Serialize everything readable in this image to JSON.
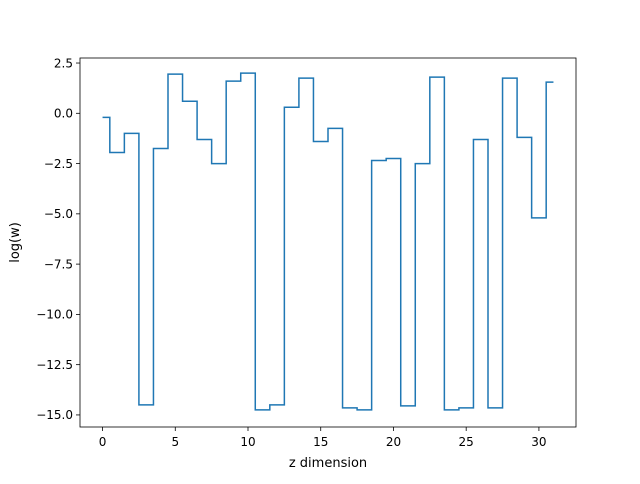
{
  "chart_data": {
    "type": "line",
    "step": "mid",
    "title": "",
    "xlabel": "z dimension",
    "ylabel": "log(w)",
    "xlim": [
      -1.55,
      32.55
    ],
    "ylim": [
      -15.6,
      2.75
    ],
    "xticks": [
      0,
      5,
      10,
      15,
      20,
      25,
      30
    ],
    "xtick_labels": [
      "0",
      "5",
      "10",
      "15",
      "20",
      "25",
      "30"
    ],
    "yticks": [
      2.5,
      0.0,
      -2.5,
      -5.0,
      -7.5,
      -10.0,
      -12.5,
      -15.0
    ],
    "ytick_labels": [
      "2.5",
      "0.0",
      "−2.5",
      "−5.0",
      "−7.5",
      "−10.0",
      "−12.5",
      "−15.0"
    ],
    "grid": false,
    "legend": "none",
    "series_color": "#1f77b4",
    "series": [
      {
        "x": [
          0,
          1,
          2,
          3,
          4,
          5,
          6,
          7,
          8,
          9,
          10,
          11,
          12,
          13,
          14,
          15,
          16,
          17,
          18,
          19,
          20,
          21,
          22,
          23,
          24,
          25,
          26,
          27,
          28,
          29,
          30,
          31
        ],
        "values": [
          -0.2,
          -1.95,
          -1.0,
          -14.5,
          -1.75,
          1.95,
          0.6,
          -1.3,
          -2.5,
          1.6,
          2.0,
          -14.75,
          -14.5,
          0.3,
          1.75,
          -1.4,
          -0.75,
          -14.65,
          -14.75,
          -2.35,
          -2.25,
          -14.55,
          -2.5,
          1.8,
          -14.75,
          -14.65,
          -1.3,
          -14.65,
          1.75,
          -1.2,
          -5.2,
          1.55
        ]
      }
    ]
  }
}
